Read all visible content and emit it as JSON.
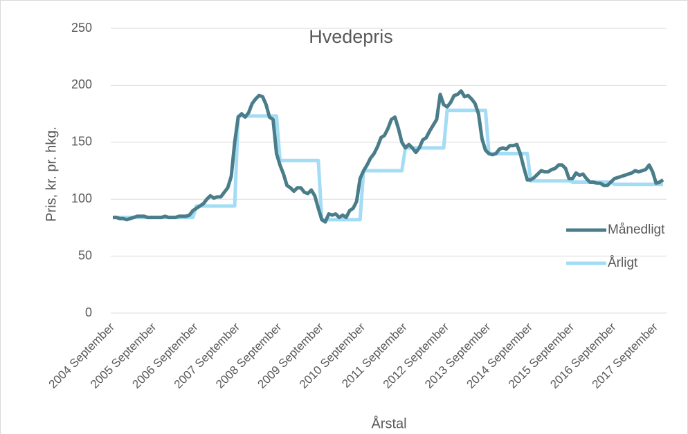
{
  "chart_data": {
    "type": "line",
    "title": "Hvedepris",
    "x_label": "Årstal",
    "y_label": "Pris, kr. pr. hkg.",
    "categories": [
      "2004 September",
      null,
      null,
      null,
      null,
      null,
      null,
      null,
      null,
      null,
      null,
      null,
      "2005 September",
      null,
      null,
      null,
      null,
      null,
      null,
      null,
      null,
      null,
      null,
      null,
      "2006 September",
      null,
      null,
      null,
      null,
      null,
      null,
      null,
      null,
      null,
      null,
      null,
      "2007 September",
      null,
      null,
      null,
      null,
      null,
      null,
      null,
      null,
      null,
      null,
      null,
      "2008 September",
      null,
      null,
      null,
      null,
      null,
      null,
      null,
      null,
      null,
      null,
      null,
      "2009 September",
      null,
      null,
      null,
      null,
      null,
      null,
      null,
      null,
      null,
      null,
      null,
      "2010 September",
      null,
      null,
      null,
      null,
      null,
      null,
      null,
      null,
      null,
      null,
      null,
      "2011 September",
      null,
      null,
      null,
      null,
      null,
      null,
      null,
      null,
      null,
      null,
      null,
      "2012 September",
      null,
      null,
      null,
      null,
      null,
      null,
      null,
      null,
      null,
      null,
      null,
      "2013 September",
      null,
      null,
      null,
      null,
      null,
      null,
      null,
      null,
      null,
      null,
      null,
      "2014 September",
      null,
      null,
      null,
      null,
      null,
      null,
      null,
      null,
      null,
      null,
      null,
      "2015 September",
      null,
      null,
      null,
      null,
      null,
      null,
      null,
      null,
      null,
      null,
      null,
      "2016 September",
      null,
      null,
      null,
      null,
      null,
      null,
      null,
      null,
      null,
      null,
      null,
      "2017 September",
      null,
      null
    ],
    "series": [
      {
        "name": "Månedligt",
        "color": "#4a7d89",
        "values": [
          84,
          84,
          83,
          83,
          82,
          83,
          84,
          85,
          85,
          85,
          84,
          84,
          84,
          84,
          84,
          85,
          84,
          84,
          84,
          85,
          85,
          85,
          86,
          90,
          92,
          94,
          96,
          100,
          103,
          101,
          102,
          102,
          106,
          110,
          120,
          150,
          172,
          175,
          172,
          176,
          184,
          188,
          191,
          190,
          183,
          172,
          170,
          140,
          130,
          122,
          112,
          110,
          107,
          110,
          110,
          106,
          105,
          108,
          103,
          92,
          82,
          80,
          87,
          86,
          87,
          84,
          86,
          84,
          90,
          92,
          98,
          118,
          125,
          130,
          136,
          140,
          146,
          154,
          156,
          162,
          170,
          172,
          162,
          150,
          145,
          148,
          145,
          141,
          145,
          152,
          154,
          160,
          165,
          170,
          192,
          183,
          181,
          185,
          191,
          192,
          195,
          190,
          191,
          188,
          184,
          175,
          153,
          143,
          140,
          139,
          140,
          144,
          145,
          144,
          147,
          147,
          148,
          140,
          128,
          117,
          117,
          119,
          122,
          125,
          124,
          124,
          126,
          127,
          130,
          130,
          127,
          118,
          118,
          123,
          121,
          122,
          118,
          115,
          115,
          114,
          114,
          112,
          112,
          115,
          118,
          119,
          120,
          121,
          122,
          123,
          125,
          124,
          125,
          126,
          130,
          124,
          114,
          115,
          117
        ]
      },
      {
        "name": "Årligt",
        "color": "#a3dcf5",
        "values": [
          84,
          84,
          84,
          84,
          84,
          84,
          84,
          84,
          84,
          84,
          84,
          84,
          84,
          84,
          84,
          84,
          84,
          84,
          84,
          84,
          84,
          84,
          84,
          84,
          94,
          94,
          94,
          94,
          94,
          94,
          94,
          94,
          94,
          94,
          94,
          94,
          173,
          173,
          173,
          173,
          173,
          173,
          173,
          173,
          173,
          173,
          173,
          173,
          134,
          134,
          134,
          134,
          134,
          134,
          134,
          134,
          134,
          134,
          134,
          134,
          82,
          82,
          82,
          82,
          82,
          82,
          82,
          82,
          82,
          82,
          82,
          82,
          125,
          125,
          125,
          125,
          125,
          125,
          125,
          125,
          125,
          125,
          125,
          125,
          145,
          145,
          145,
          145,
          145,
          145,
          145,
          145,
          145,
          145,
          145,
          145,
          178,
          178,
          178,
          178,
          178,
          178,
          178,
          178,
          178,
          178,
          178,
          178,
          140,
          140,
          140,
          140,
          140,
          140,
          140,
          140,
          140,
          140,
          140,
          140,
          116,
          116,
          116,
          116,
          116,
          116,
          116,
          116,
          116,
          116,
          116,
          116,
          115,
          115,
          115,
          115,
          115,
          115,
          115,
          115,
          115,
          115,
          115,
          115,
          113,
          113,
          113,
          113,
          113,
          113,
          113,
          113,
          113,
          113,
          113,
          113,
          113,
          113,
          113
        ]
      }
    ],
    "ylim": [
      0,
      250
    ],
    "yticks": [
      0,
      50,
      100,
      150,
      200,
      250
    ],
    "grid": true,
    "legend_position": "right"
  }
}
